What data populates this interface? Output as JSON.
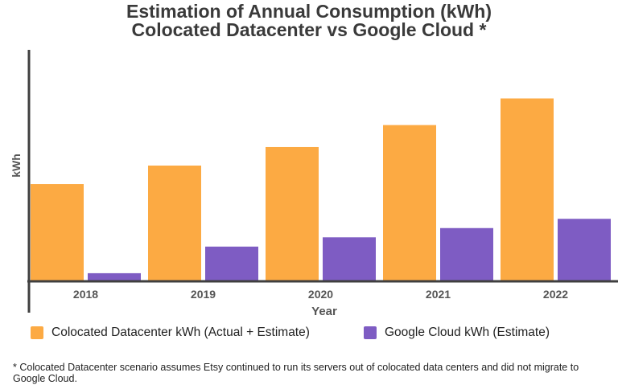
{
  "chart_data": {
    "type": "bar",
    "title": "Estimation of Annual Consumption (kWh)",
    "subtitle": "Colocated Datacenter vs Google Cloud *",
    "xlabel": "Year",
    "ylabel": "kWh",
    "categories": [
      "2018",
      "2019",
      "2020",
      "2021",
      "2022"
    ],
    "series": [
      {
        "name": "Colocated Datacenter kWh (Actual + Estimate)",
        "color": "#FCAA43",
        "values": [
          42,
          50,
          58,
          67.5,
          79
        ]
      },
      {
        "name": "Google Cloud kWh (Estimate)",
        "color": "#7E5CC3",
        "values": [
          3.5,
          15,
          19,
          23,
          27
        ]
      }
    ],
    "ylim": [
      0,
      100
    ],
    "grid": false,
    "legend_position": "bottom"
  },
  "footnote": "* Colocated Datacenter scenario assumes Etsy continued to run its servers out of colocated data centers and did not migrate to Google Cloud."
}
